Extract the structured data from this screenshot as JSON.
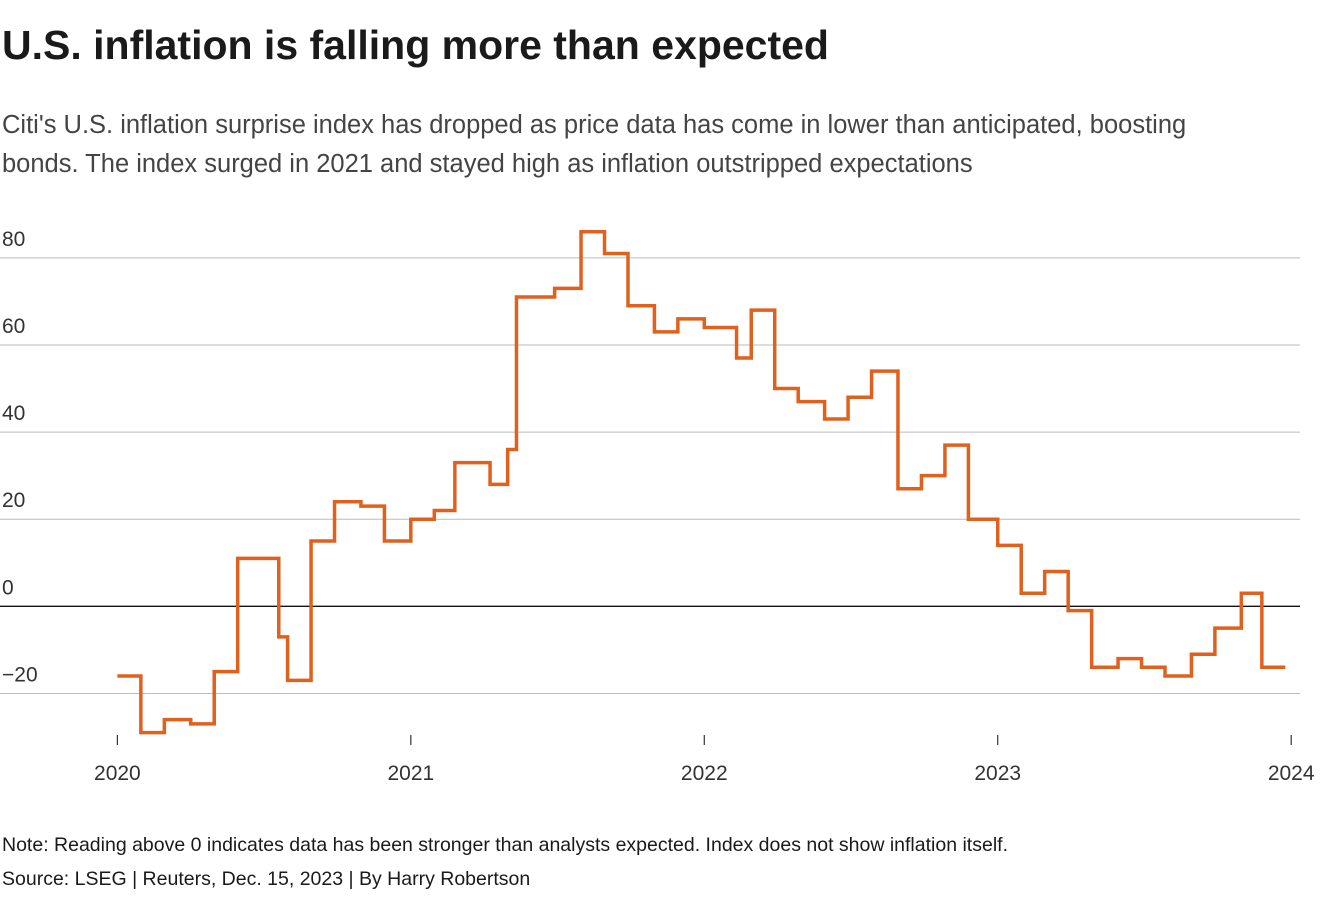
{
  "chart_data": {
    "type": "step",
    "title": "U.S. inflation is falling more than expected",
    "subtitle": "Citi's U.S. inflation surprise index has dropped as price data has come in lower than anticipated, boosting bonds. The index surged in 2021 and stayed high as inflation outstripped expectations",
    "note": "Note: Reading above 0 indicates data has been stronger than analysts expected. Index does not show inflation itself.",
    "source": "Source: LSEG | Reuters, Dec. 15, 2023 | By Harry Robertson",
    "x": [
      2020.0,
      2020.08,
      2020.16,
      2020.25,
      2020.33,
      2020.41,
      2020.55,
      2020.58,
      2020.66,
      2020.74,
      2020.83,
      2020.91,
      2021.0,
      2021.08,
      2021.15,
      2021.27,
      2021.33,
      2021.36,
      2021.49,
      2021.58,
      2021.66,
      2021.74,
      2021.83,
      2021.91,
      2022.0,
      2022.11,
      2022.16,
      2022.24,
      2022.32,
      2022.41,
      2022.49,
      2022.57,
      2022.66,
      2022.74,
      2022.82,
      2022.9,
      2023.0,
      2023.08,
      2023.16,
      2023.24,
      2023.32,
      2023.41,
      2023.49,
      2023.57,
      2023.66,
      2023.74,
      2023.83,
      2023.9,
      2023.98
    ],
    "values": [
      -16,
      -29,
      -26,
      -27,
      -15,
      11,
      -7,
      -17,
      15,
      24,
      23,
      15,
      20,
      22,
      33,
      28,
      36,
      71,
      73,
      86,
      81,
      69,
      63,
      66,
      64,
      57,
      68,
      50,
      47,
      43,
      48,
      54,
      27,
      30,
      37,
      20,
      14,
      3,
      8,
      -1,
      -14,
      -12,
      -14,
      -16,
      -11,
      -5,
      3,
      -14,
      -14
    ],
    "color": "#e0601e",
    "xlim": [
      2019.6,
      2024.03
    ],
    "xticks": [
      2020,
      2021,
      2022,
      2023,
      2024
    ],
    "ylim": [
      -30,
      88
    ],
    "yticks": [
      80,
      60,
      40,
      20,
      0,
      {
        "value": -20,
        "label": "−20"
      }
    ],
    "grid": true
  }
}
